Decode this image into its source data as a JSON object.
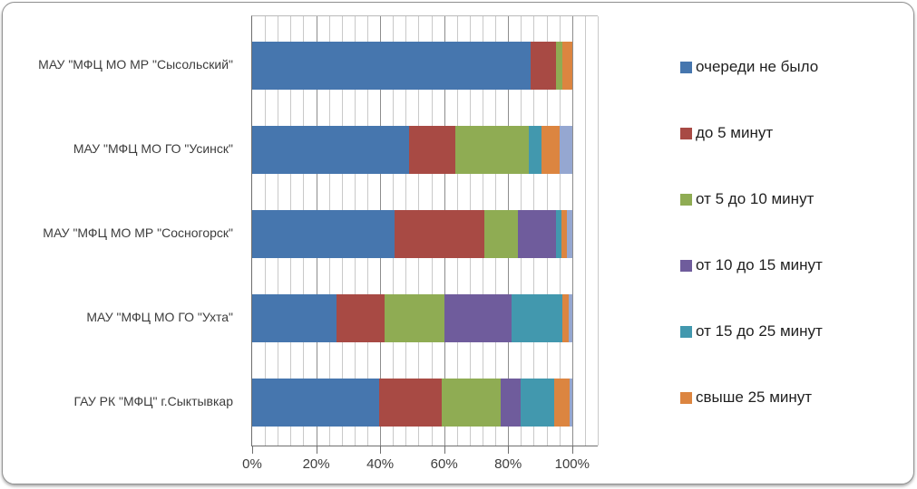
{
  "chart_data": {
    "type": "bar",
    "variant": "horizontal-stacked-100pct",
    "title": "",
    "categories": [
      "МАУ \"МФЦ  МО МР  \"Сысольский\"",
      "МАУ \"МФЦ  МО ГО  \"Усинск\"",
      "МАУ \"МФЦ МО МР \"Сосногорск\"",
      "МАУ \"МФЦ МО ГО \"Ухта\"",
      "ГАУ РК \"МФЦ\" г.Сыктывкар"
    ],
    "series": [
      {
        "name": "очереди не было",
        "color": "#4676AE",
        "in_legend": true,
        "values": [
          87,
          49,
          44.5,
          26.5,
          39.8
        ]
      },
      {
        "name": "до 5 минут",
        "color": "#A84A44",
        "in_legend": true,
        "values": [
          8,
          14.5,
          28,
          15,
          19.4
        ]
      },
      {
        "name": "от 5 до 10 минут",
        "color": "#8FAC53",
        "in_legend": true,
        "values": [
          2,
          23,
          10.5,
          18.5,
          18.6
        ]
      },
      {
        "name": "от 10 до 15 минут",
        "color": "#6F5C9C",
        "in_legend": true,
        "values": [
          0,
          0,
          12,
          21,
          6.1
        ]
      },
      {
        "name": "от 15 до 25 минут",
        "color": "#4298AE",
        "in_legend": true,
        "values": [
          0,
          4,
          1.7,
          16,
          10.6
        ]
      },
      {
        "name": "свыше 25 минут",
        "color": "#DC8540",
        "in_legend": true,
        "values": [
          3,
          5.5,
          1.8,
          2,
          4.7
        ]
      },
      {
        "name": "",
        "color": "#95A7D1",
        "in_legend": false,
        "values": [
          0,
          4,
          1.5,
          1,
          0.8
        ]
      }
    ],
    "x_axis": {
      "tick_labels": [
        "0%",
        "20%",
        "40%",
        "60%",
        "80%",
        "100%"
      ],
      "tick_values": [
        0,
        20,
        40,
        60,
        80,
        100
      ],
      "min": 0,
      "max": 100,
      "major_unit": 20,
      "minor_unit": 4,
      "gridlines_extend_to": 108,
      "grid": true
    },
    "legend_position": "right",
    "colors": {
      "minor_gridline": "#C9C9C9",
      "major_gridline": "#8D8D8D",
      "axis_line": "#6E6E6E",
      "text": "#3D3D3D"
    }
  }
}
